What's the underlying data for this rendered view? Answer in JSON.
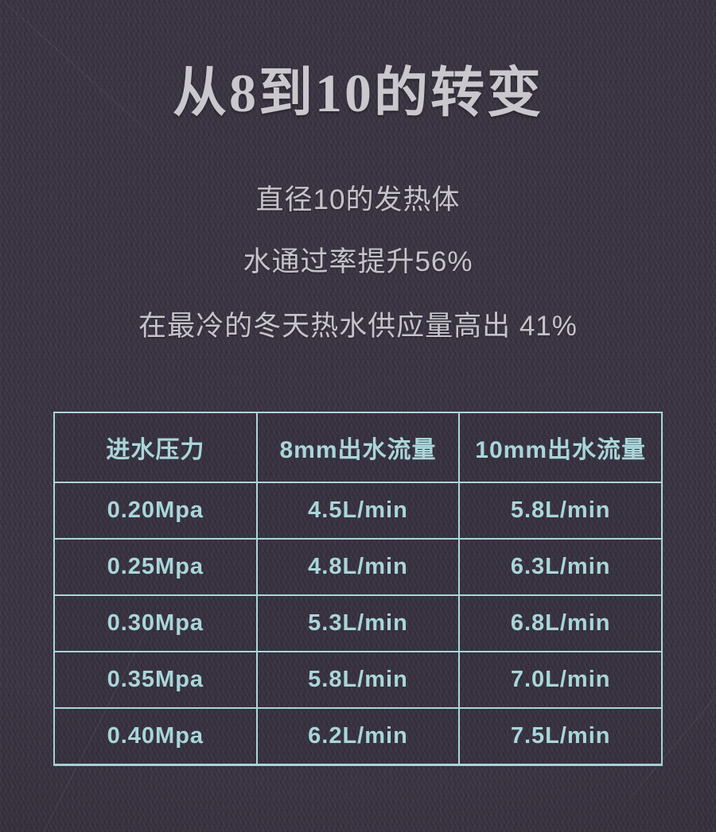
{
  "colors": {
    "background": "#3a3442",
    "title_text": "#cac7cd",
    "body_text": "#c6c3c9",
    "table_accent": "#a9d6da"
  },
  "header": {
    "title": "从8到10的转变"
  },
  "intro": {
    "lines": [
      "直径10的发热体",
      "水通过率提升56%",
      "在最冷的冬天热水供应量高出 41%"
    ]
  },
  "table": {
    "headers": [
      "进水压力",
      "8mm出水流量",
      "10mm出水流量"
    ],
    "rows": [
      [
        "0.20Mpa",
        "4.5L/min",
        "5.8L/min"
      ],
      [
        "0.25Mpa",
        "4.8L/min",
        "6.3L/min"
      ],
      [
        "0.30Mpa",
        "5.3L/min",
        "6.8L/min"
      ],
      [
        "0.35Mpa",
        "5.8L/min",
        "7.0L/min"
      ],
      [
        "0.40Mpa",
        "6.2L/min",
        "7.5L/min"
      ]
    ]
  }
}
